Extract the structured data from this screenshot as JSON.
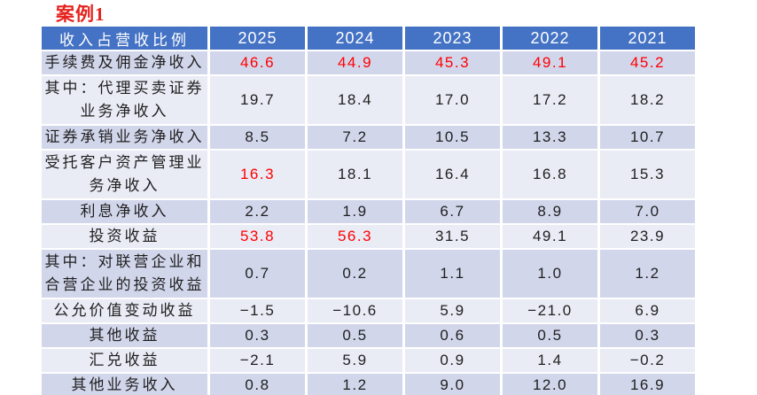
{
  "title": "案例1",
  "colors": {
    "title_red": "#e5241f",
    "highlight_red": "#ff0000",
    "header_bg": "#4472c4",
    "header_text": "#ffffff",
    "band_dark": "#d2d6eb",
    "band_light": "#e9ebf5",
    "grid_white": "#ffffff",
    "body_text": "#1f1f1f"
  },
  "chart_data": {
    "type": "table",
    "title": "案例1",
    "columns": [
      "收入占营收比例",
      "2025",
      "2024",
      "2023",
      "2022",
      "2021"
    ],
    "rows": [
      {
        "label": "手续费及佣金净收入",
        "values": [
          "46.6",
          "44.9",
          "45.3",
          "49.1",
          "45.2"
        ],
        "red": [
          0,
          1,
          2,
          3,
          4
        ]
      },
      {
        "label": "其中：代理买卖证券\n业务净收入",
        "values": [
          "19.7",
          "18.4",
          "17.0",
          "17.2",
          "18.2"
        ],
        "red": []
      },
      {
        "label": "证券承销业务净收入",
        "values": [
          "8.5",
          "7.2",
          "10.5",
          "13.3",
          "10.7"
        ],
        "red": []
      },
      {
        "label": "受托客户资产管理业\n务净收入",
        "values": [
          "16.3",
          "18.1",
          "16.4",
          "16.8",
          "15.3"
        ],
        "red": [
          0
        ]
      },
      {
        "label": "利息净收入",
        "values": [
          "2.2",
          "1.9",
          "6.7",
          "8.9",
          "7.0"
        ],
        "red": []
      },
      {
        "label": "投资收益",
        "values": [
          "53.8",
          "56.3",
          "31.5",
          "49.1",
          "23.9"
        ],
        "red": [
          0,
          1
        ]
      },
      {
        "label": "其中：对联营企业和\n合营企业的投资收益",
        "values": [
          "0.7",
          "0.2",
          "1.1",
          "1.0",
          "1.2"
        ],
        "red": []
      },
      {
        "label": "公允价值变动收益",
        "values": [
          "−1.5",
          "−10.6",
          "5.9",
          "−21.0",
          "6.9"
        ],
        "red": []
      },
      {
        "label": "其他收益",
        "values": [
          "0.3",
          "0.5",
          "0.6",
          "0.5",
          "0.3"
        ],
        "red": []
      },
      {
        "label": "汇兑收益",
        "values": [
          "−2.1",
          "5.9",
          "0.9",
          "1.4",
          "−0.2"
        ],
        "red": []
      },
      {
        "label": "其他业务收入",
        "values": [
          "0.8",
          "1.2",
          "9.0",
          "12.0",
          "16.9"
        ],
        "red": []
      }
    ]
  }
}
